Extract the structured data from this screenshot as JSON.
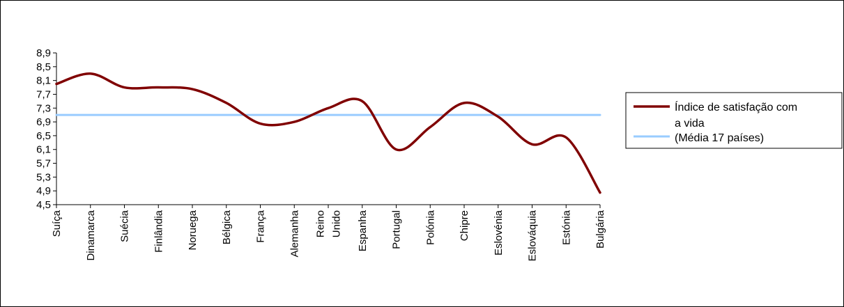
{
  "chart_data": {
    "type": "line",
    "categories": [
      "Suíça",
      "Dinamarca",
      "Suécia",
      "Finlândia",
      "Noruega",
      "Bélgica",
      "França",
      "Alemanha",
      "Reino Unido",
      "Espanha",
      "Portugal",
      "Polónia",
      "Chipre",
      "Eslovénia",
      "Eslováquia",
      "Estónia",
      "Bulgária"
    ],
    "category_lines": [
      [
        "Suíça"
      ],
      [
        "Dinamarca"
      ],
      [
        "Suécia"
      ],
      [
        "Finlândia"
      ],
      [
        "Noruega"
      ],
      [
        "Bélgica"
      ],
      [
        "França"
      ],
      [
        "Alemanha"
      ],
      [
        "Reino",
        "Unido"
      ],
      [
        "Espanha"
      ],
      [
        "Portugal"
      ],
      [
        "Polónia"
      ],
      [
        "Chipre"
      ],
      [
        "Eslovénia"
      ],
      [
        "Eslováquia"
      ],
      [
        "Estónia"
      ],
      [
        "Bulgária"
      ]
    ],
    "series": [
      {
        "name": "Índice de satisfação com a vida",
        "name_lines": [
          "Índice de satisfação com",
          "a vida"
        ],
        "color": "#800000",
        "values": [
          8.0,
          8.3,
          7.9,
          7.9,
          7.85,
          7.45,
          6.85,
          6.9,
          7.3,
          7.5,
          6.1,
          6.75,
          7.45,
          7.05,
          6.25,
          6.45,
          4.85
        ]
      },
      {
        "name": "(Média 17 países)",
        "name_lines": [
          "(Média 17 países)"
        ],
        "color": "#99ccff",
        "values": [
          7.1,
          7.1,
          7.1,
          7.1,
          7.1,
          7.1,
          7.1,
          7.1,
          7.1,
          7.1,
          7.1,
          7.1,
          7.1,
          7.1,
          7.1,
          7.1,
          7.1
        ]
      }
    ],
    "y_ticks": [
      "4,5",
      "4,9",
      "5,3",
      "5,7",
      "6,1",
      "6,5",
      "6,9",
      "7,3",
      "7,7",
      "8,1",
      "8,5",
      "8,9"
    ],
    "ylim": [
      4.5,
      8.9
    ],
    "legend": "right",
    "grid": false
  }
}
